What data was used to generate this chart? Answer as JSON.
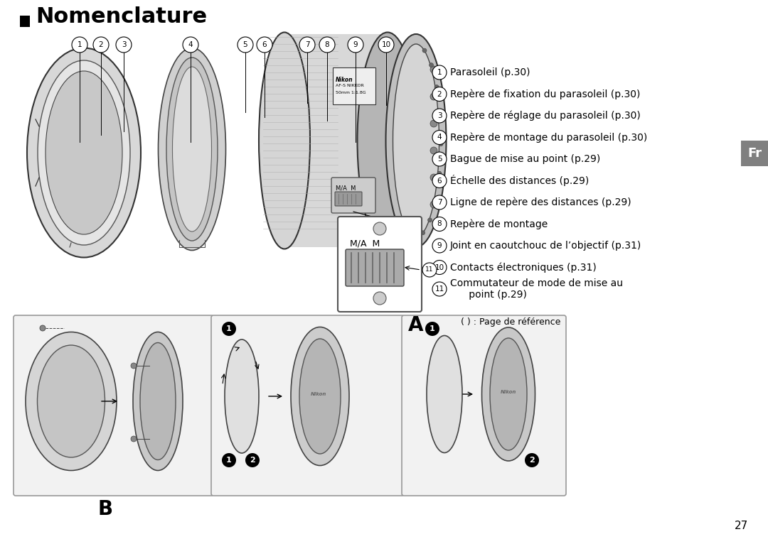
{
  "title": "Nomenclature",
  "bg_color": "#ffffff",
  "text_color": "#000000",
  "fr_tab_color": "#808080",
  "fr_tab_text": "Fr",
  "page_number": "27",
  "items": [
    {
      "num": "1",
      "text": "Parasoleil (p.30)"
    },
    {
      "num": "2",
      "text": "Repère de fixation du parasoleil (p.30)"
    },
    {
      "num": "3",
      "text": "Repère de réglage du parasoleil (p.30)"
    },
    {
      "num": "4",
      "text": "Repère de montage du parasoleil (p.30)"
    },
    {
      "num": "5",
      "text": "Bague de mise au point (p.29)"
    },
    {
      "num": "6",
      "text": "Échelle des distances (p.29)"
    },
    {
      "num": "7",
      "text": "Ligne de repère des distances (p.29)"
    },
    {
      "num": "8",
      "text": "Repère de montage"
    },
    {
      "num": "9",
      "text": "Joint en caoutchouc de l’objectif (p.31)"
    },
    {
      "num": "10",
      "text": "Contacts électroniques (p.31)"
    },
    {
      "num": "11",
      "text": "Commutateur de mode de mise au\n      point (p.29)"
    }
  ],
  "ref_note": "( ) : Page de référence",
  "label_A": "A",
  "label_B": "B"
}
